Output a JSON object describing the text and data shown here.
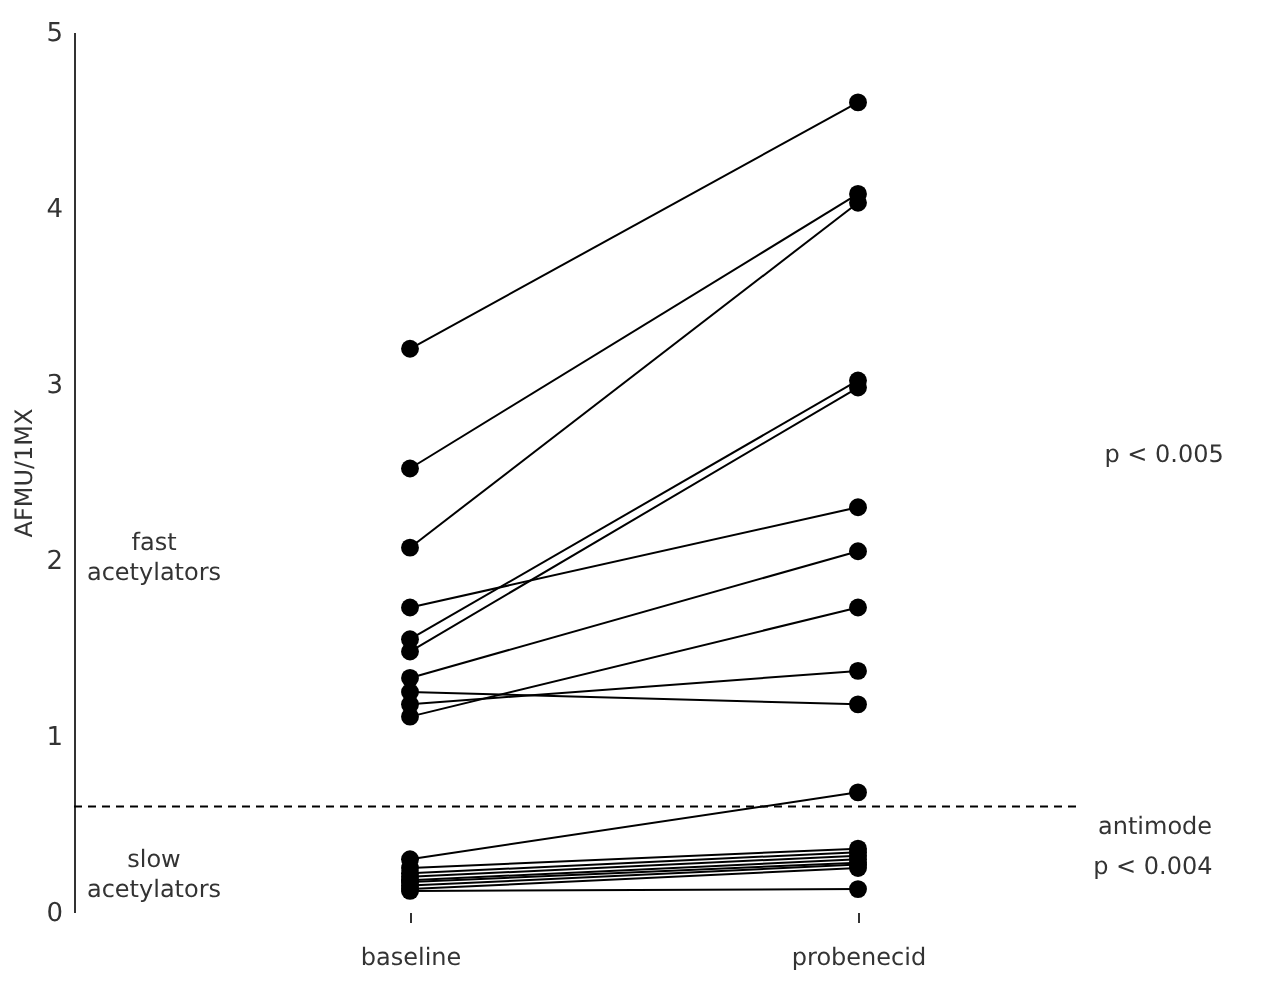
{
  "chart_data": {
    "type": "line",
    "categories": [
      "baseline",
      "probenecid"
    ],
    "ylabel": "AFMU/1MX",
    "ylim": [
      0,
      5
    ],
    "yticks": [
      0,
      1,
      2,
      3,
      4,
      5
    ],
    "grid": false,
    "marker": "circle",
    "line_style": "solid",
    "series": [
      {
        "color": "#000000",
        "values": [
          3.2,
          4.6
        ]
      },
      {
        "color": "#000000",
        "values": [
          2.52,
          4.08
        ]
      },
      {
        "color": "#000000",
        "values": [
          2.07,
          4.03
        ]
      },
      {
        "color": "#000000",
        "values": [
          1.73,
          2.3
        ]
      },
      {
        "color": "#000000",
        "values": [
          1.55,
          3.02
        ]
      },
      {
        "color": "#000000",
        "values": [
          1.48,
          2.98
        ]
      },
      {
        "color": "#000000",
        "values": [
          1.33,
          2.05
        ]
      },
      {
        "color": "#000000",
        "values": [
          1.25,
          1.18
        ]
      },
      {
        "color": "#000000",
        "values": [
          1.18,
          1.37
        ]
      },
      {
        "color": "#000000",
        "values": [
          1.11,
          1.73
        ]
      },
      {
        "color": "#000000",
        "values": [
          0.3,
          0.68
        ]
      },
      {
        "color": "#000000",
        "values": [
          0.25,
          0.36
        ]
      },
      {
        "color": "#000000",
        "values": [
          0.22,
          0.34
        ]
      },
      {
        "color": "#000000",
        "values": [
          0.2,
          0.32
        ]
      },
      {
        "color": "#000000",
        "values": [
          0.18,
          0.3
        ]
      },
      {
        "color": "#000000",
        "values": [
          0.17,
          0.28
        ]
      },
      {
        "color": "#000000",
        "values": [
          0.15,
          0.27
        ]
      },
      {
        "color": "#000000",
        "values": [
          0.13,
          0.25
        ]
      },
      {
        "color": "#000000",
        "values": [
          0.12,
          0.13
        ]
      }
    ],
    "ref_lines": [
      {
        "axis": "y",
        "value": 0.6,
        "label": "antimode",
        "color": "#000000",
        "line_style": "dashed"
      }
    ],
    "annotations": [
      "fast acetylators",
      "slow acetylators",
      "p < 0.005",
      "p < 0.004"
    ]
  }
}
